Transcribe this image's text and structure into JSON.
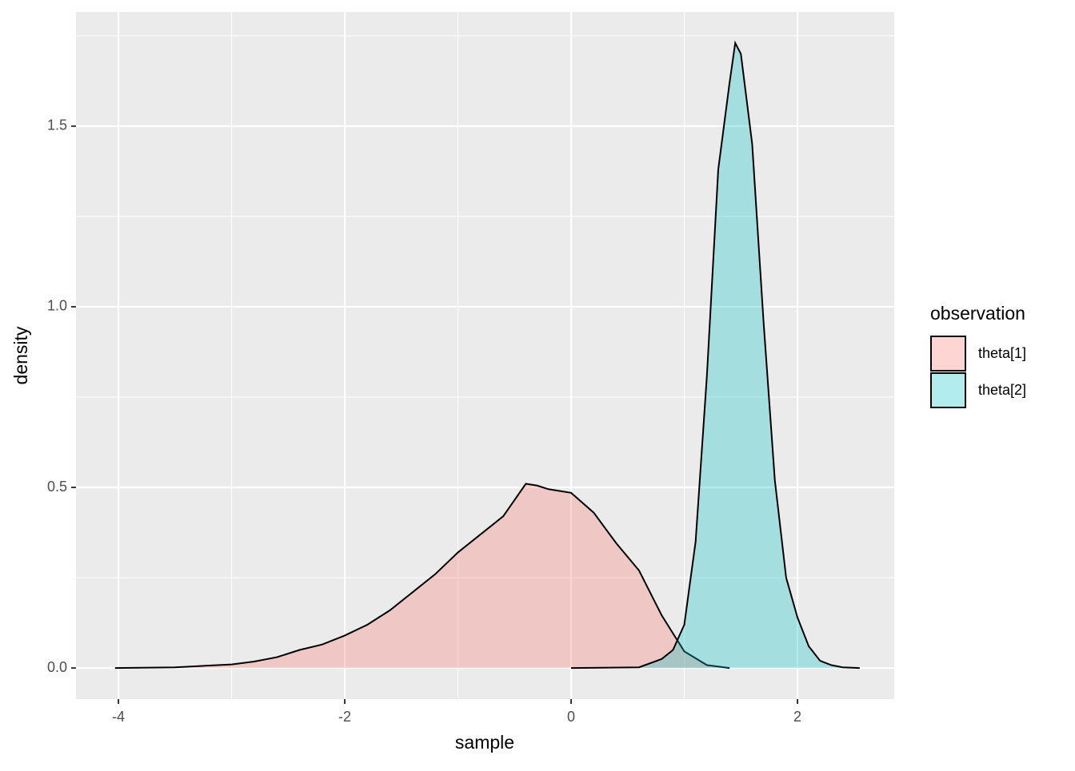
{
  "chart_data": {
    "type": "density",
    "xlabel": "sample",
    "ylabel": "density",
    "legend_title": "observation",
    "legend_position": "right",
    "xlim": [
      -4.375,
      2.855
    ],
    "ylim": [
      -0.086,
      1.816
    ],
    "xticks": [
      -4,
      -2,
      0,
      2
    ],
    "yticks": [
      {
        "value": 0,
        "label": "0.0"
      },
      0.5,
      {
        "value": 1,
        "label": "1.0"
      },
      1.5
    ],
    "x_minor_grid": [
      -3,
      -1,
      1
    ],
    "y_minor_grid": [
      0.25,
      0.75,
      1.25,
      1.75
    ],
    "grid": true,
    "alpha": 0.3,
    "series": [
      {
        "name": "theta[1]",
        "color": "#F8766D",
        "x": [
          -4.03,
          -3.5,
          -3.0,
          -2.8,
          -2.6,
          -2.4,
          -2.2,
          -2.0,
          -1.8,
          -1.6,
          -1.4,
          -1.2,
          -1.0,
          -0.8,
          -0.6,
          -0.4,
          -0.3,
          -0.2,
          0.0,
          0.2,
          0.4,
          0.6,
          0.8,
          1.0,
          1.2,
          1.4
        ],
        "values": [
          0,
          0.002,
          0.01,
          0.018,
          0.03,
          0.05,
          0.065,
          0.09,
          0.12,
          0.16,
          0.21,
          0.26,
          0.32,
          0.37,
          0.42,
          0.51,
          0.505,
          0.495,
          0.485,
          0.43,
          0.345,
          0.27,
          0.146,
          0.046,
          0.008,
          0
        ]
      },
      {
        "name": "theta[2]",
        "color": "#00BFC4",
        "x": [
          0.0,
          0.6,
          0.8,
          0.9,
          1.0,
          1.1,
          1.2,
          1.3,
          1.4,
          1.45,
          1.5,
          1.6,
          1.7,
          1.8,
          1.9,
          2.0,
          2.1,
          2.2,
          2.3,
          2.4,
          2.55
        ],
        "values": [
          0,
          0.002,
          0.025,
          0.05,
          0.12,
          0.35,
          0.81,
          1.38,
          1.62,
          1.73,
          1.7,
          1.45,
          0.96,
          0.52,
          0.25,
          0.14,
          0.06,
          0.02,
          0.008,
          0.002,
          0
        ]
      }
    ]
  }
}
